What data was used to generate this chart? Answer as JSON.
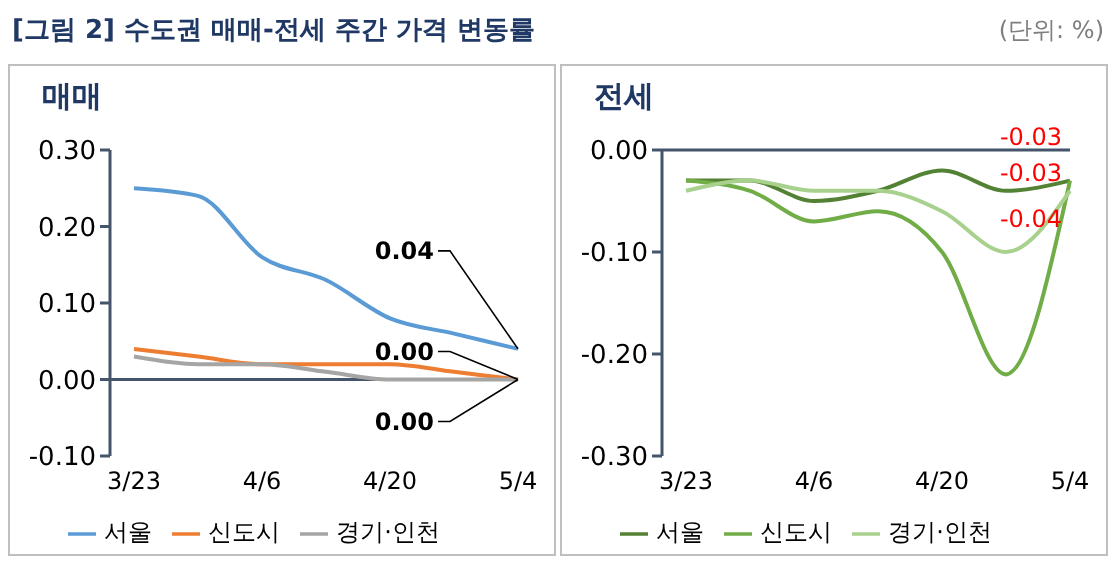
{
  "chart_data": [
    {
      "type": "line",
      "title": "매매",
      "annotations": [
        "[그림 2] 수도권 매매-전세 주간 가격 변동률",
        "(단위: %)"
      ],
      "categories": [
        "3/23",
        null,
        "4/6",
        null,
        "4/20",
        null,
        "5/4"
      ],
      "series": [
        {
          "name": "서울",
          "color": "#5b9bd5",
          "values": [
            0.25,
            0.24,
            0.16,
            0.13,
            0.08,
            0.06,
            0.04
          ],
          "value_labels": [
            null,
            null,
            null,
            null,
            null,
            null,
            "0.04"
          ]
        },
        {
          "name": "신도시",
          "color": "#ed7d31",
          "values": [
            0.04,
            0.03,
            0.02,
            0.02,
            0.02,
            0.01,
            0.0
          ],
          "value_labels": [
            null,
            null,
            null,
            null,
            null,
            null,
            "0.00"
          ]
        },
        {
          "name": "경기·인천",
          "color": "#a5a5a5",
          "values": [
            0.03,
            0.02,
            0.02,
            0.01,
            0.0,
            0.0,
            0.0
          ],
          "value_labels": [
            null,
            null,
            null,
            null,
            null,
            null,
            "0.00"
          ]
        }
      ],
      "ylim": [
        -0.1,
        0.3
      ],
      "yticks": [
        {
          "value": -0.1,
          "label": "-0.10"
        },
        {
          "value": 0,
          "label": "0.00"
        },
        {
          "value": 0.1,
          "label": "0.10"
        },
        {
          "value": 0.2,
          "label": "0.20"
        },
        {
          "value": 0.3,
          "label": "0.30"
        }
      ],
      "ref_lines": [
        {
          "axis": "y",
          "value": 0,
          "color": "#44546a"
        }
      ],
      "grid": false,
      "legend": "bottom",
      "marker": "none",
      "line_style": "solid"
    },
    {
      "type": "line",
      "title": "전세",
      "categories": [
        "3/23",
        null,
        "4/6",
        null,
        "4/20",
        null,
        "5/4"
      ],
      "series": [
        {
          "name": "서울",
          "color": "#548235",
          "values": [
            -0.03,
            -0.03,
            -0.05,
            -0.04,
            -0.02,
            -0.04,
            -0.03
          ],
          "value_labels": [
            null,
            null,
            null,
            null,
            null,
            null,
            "-0.03"
          ]
        },
        {
          "name": "신도시",
          "color": "#70ad47",
          "values": [
            -0.03,
            -0.04,
            -0.07,
            -0.06,
            -0.1,
            -0.22,
            -0.03
          ],
          "value_labels": [
            null,
            null,
            null,
            null,
            null,
            null,
            "-0.03"
          ]
        },
        {
          "name": "경기·인천",
          "color": "#a9d18e",
          "values": [
            -0.04,
            -0.03,
            -0.04,
            -0.04,
            -0.06,
            -0.1,
            -0.04
          ],
          "value_labels": [
            null,
            null,
            null,
            null,
            null,
            null,
            "-0.04"
          ]
        }
      ],
      "ylim": [
        -0.3,
        0
      ],
      "yticks": [
        {
          "value": -0.3,
          "label": "-0.30"
        },
        {
          "value": -0.2,
          "label": "-0.20"
        },
        {
          "value": -0.1,
          "label": "-0.10"
        },
        {
          "value": 0,
          "label": "0.00"
        }
      ],
      "ref_lines": [
        {
          "axis": "y",
          "value": 0,
          "color": "#44546a"
        }
      ],
      "grid": false,
      "legend": "bottom",
      "marker": "none",
      "line_style": "solid"
    }
  ]
}
